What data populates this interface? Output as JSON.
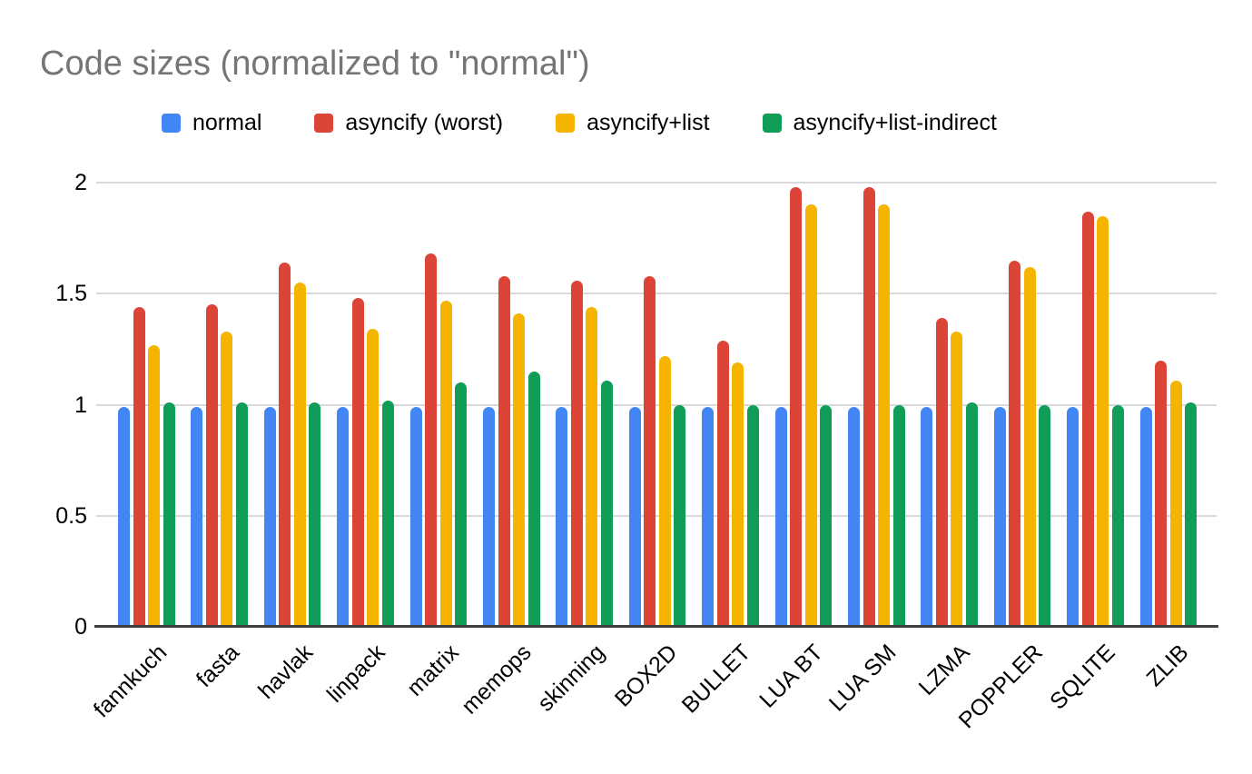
{
  "title": {
    "text": "Code sizes (normalized to \"normal\")",
    "color": "#757575"
  },
  "legend": [
    {
      "label": "normal",
      "color": "#4285F4"
    },
    {
      "label": "asyncify (worst)",
      "color": "#DB4437"
    },
    {
      "label": "asyncify+list",
      "color": "#F4B400"
    },
    {
      "label": "asyncify+list-indirect",
      "color": "#0F9D58"
    }
  ],
  "axes": {
    "y_tick_labels": [
      "0",
      "0.5",
      "1",
      "1.5",
      "2"
    ]
  },
  "colors": {
    "background": "#ffffff",
    "gridline": "#d9d9d9",
    "baseline": "#3c4043",
    "title": "#757575",
    "axis_label": "#000000"
  },
  "chart_data": {
    "type": "bar",
    "title": "Code sizes (normalized to \"normal\")",
    "categories": [
      "fannkuch",
      "fasta",
      "havlak",
      "linpack",
      "matrix",
      "memops",
      "skinning",
      "BOX2D",
      "BULLET",
      "LUA BT",
      "LUA SM",
      "LZMA",
      "POPPLER",
      "SQLITE",
      "ZLIB"
    ],
    "series": [
      {
        "name": "normal",
        "color": "#4285F4",
        "values": [
          0.99,
          0.99,
          0.99,
          0.99,
          0.99,
          0.99,
          0.99,
          0.99,
          0.99,
          0.99,
          0.99,
          0.99,
          0.99,
          0.99,
          0.99
        ]
      },
      {
        "name": "asyncify (worst)",
        "color": "#DB4437",
        "values": [
          1.44,
          1.45,
          1.64,
          1.48,
          1.68,
          1.58,
          1.56,
          1.58,
          1.29,
          1.98,
          1.98,
          1.39,
          1.65,
          1.87,
          1.2
        ]
      },
      {
        "name": "asyncify+list",
        "color": "#F4B400",
        "values": [
          1.27,
          1.33,
          1.55,
          1.34,
          1.47,
          1.41,
          1.44,
          1.22,
          1.19,
          1.9,
          1.9,
          1.33,
          1.62,
          1.85,
          1.11
        ]
      },
      {
        "name": "asyncify+list-indirect",
        "color": "#0F9D58",
        "values": [
          1.01,
          1.01,
          1.01,
          1.02,
          1.1,
          1.15,
          1.11,
          1.0,
          1.0,
          1.0,
          1.0,
          1.01,
          1.0,
          1.0,
          1.01
        ]
      }
    ],
    "xlabel": "",
    "ylabel": "",
    "ylim": [
      0,
      2
    ],
    "yticks": [
      0,
      0.5,
      1,
      1.5,
      2
    ],
    "grid": true,
    "legend_position": "top"
  }
}
